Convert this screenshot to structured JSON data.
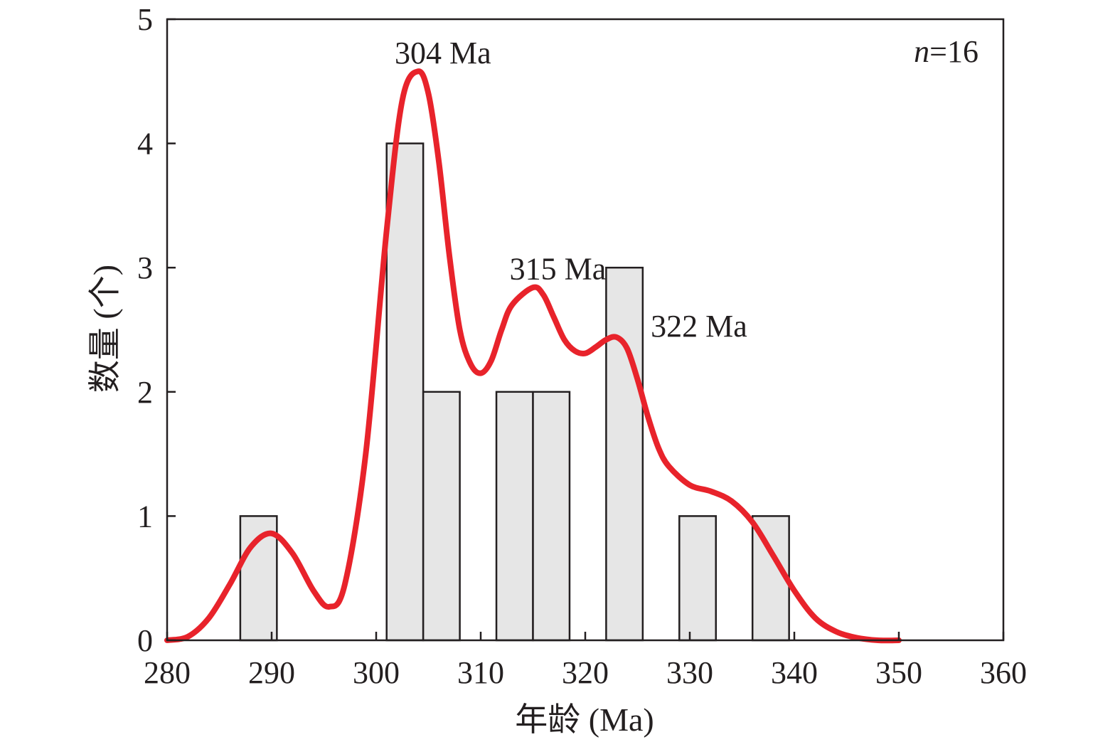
{
  "chart_data": {
    "type": "bar",
    "title": "",
    "xlabel": "年龄 (Ma)",
    "ylabel": "数量 (个)",
    "xlim": [
      280,
      360
    ],
    "ylim": [
      0,
      5
    ],
    "x_ticks": [
      280,
      290,
      300,
      310,
      320,
      330,
      340,
      350,
      360
    ],
    "y_ticks": [
      0,
      1,
      2,
      3,
      4,
      5
    ],
    "grid": false,
    "sample_size": {
      "italic": "n",
      "text": "=16"
    },
    "histogram": {
      "bin_width": 3.5,
      "bins": [
        {
          "start": 287.0,
          "end": 290.5,
          "count": 1
        },
        {
          "start": 301.0,
          "end": 304.5,
          "count": 4
        },
        {
          "start": 304.5,
          "end": 308.0,
          "count": 2
        },
        {
          "start": 311.5,
          "end": 315.0,
          "count": 2
        },
        {
          "start": 315.0,
          "end": 318.5,
          "count": 2
        },
        {
          "start": 322.0,
          "end": 325.5,
          "count": 3
        },
        {
          "start": 329.0,
          "end": 332.5,
          "count": 1
        },
        {
          "start": 336.0,
          "end": 339.5,
          "count": 1
        }
      ],
      "fill_color": "#e6e6e6",
      "stroke_color": "#231f20"
    },
    "density_curve": {
      "color": "#e8232b",
      "x": [
        280,
        282,
        284,
        286,
        288,
        290,
        292,
        294,
        295.5,
        297,
        299,
        301,
        302.5,
        304,
        305,
        306,
        307,
        308,
        309,
        310,
        311,
        312,
        313,
        315,
        316,
        317,
        318,
        319,
        320,
        321,
        322,
        323,
        324,
        325,
        326,
        327,
        328,
        330,
        332,
        334,
        336,
        338,
        340,
        342,
        344,
        346,
        348,
        350
      ],
      "y": [
        0.0,
        0.03,
        0.18,
        0.45,
        0.75,
        0.86,
        0.7,
        0.4,
        0.27,
        0.45,
        1.5,
        3.3,
        4.35,
        4.58,
        4.4,
        3.85,
        3.1,
        2.5,
        2.23,
        2.15,
        2.25,
        2.5,
        2.7,
        2.84,
        2.78,
        2.6,
        2.42,
        2.33,
        2.31,
        2.36,
        2.42,
        2.44,
        2.35,
        2.1,
        1.8,
        1.55,
        1.4,
        1.25,
        1.2,
        1.12,
        0.95,
        0.68,
        0.4,
        0.18,
        0.07,
        0.02,
        0.0,
        0.0
      ]
    },
    "annotations": [
      {
        "text": "304 Ma",
        "x": 304,
        "y": 4.6
      },
      {
        "text": "315 Ma",
        "x": 315,
        "y": 2.86
      },
      {
        "text": "322 Ma",
        "x": 328.5,
        "y": 2.4
      }
    ]
  }
}
